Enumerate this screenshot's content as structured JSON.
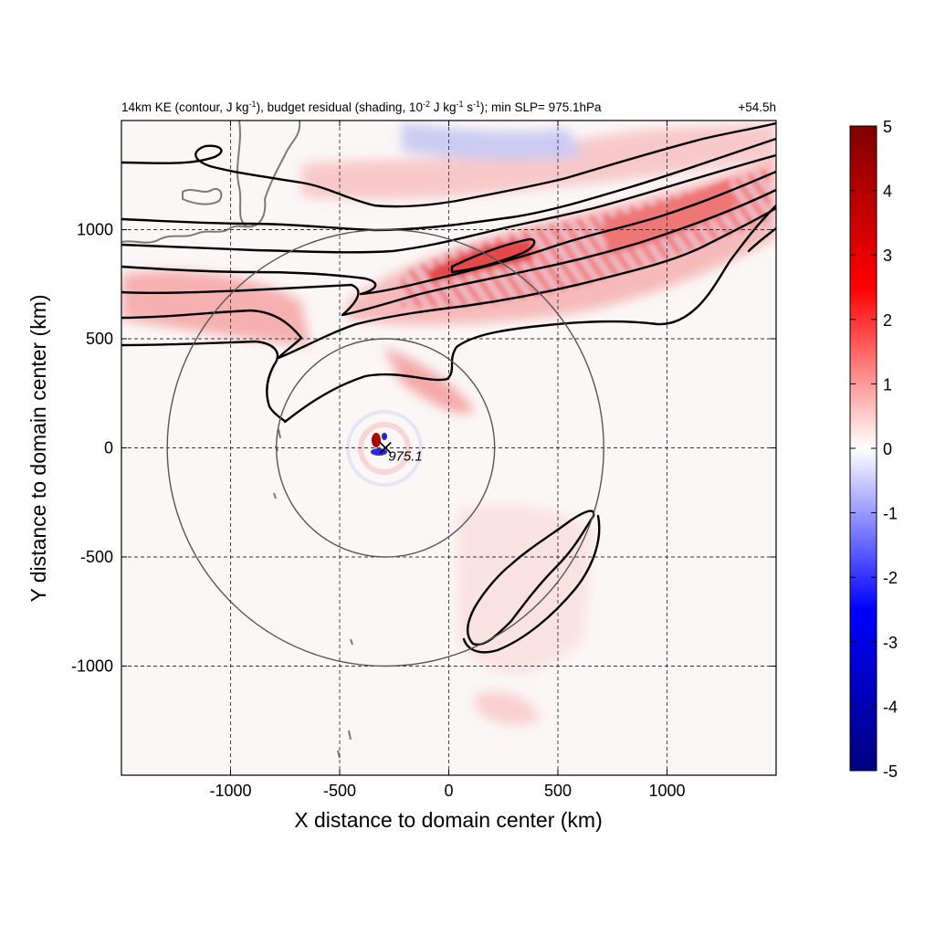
{
  "chart_data": {
    "type": "heatmap",
    "title_left": "14km KE (contour, J kg-1), budget residual (shading, 10-2 J kg-1 s-1); min SLP= 975.1hPa",
    "title_parts": {
      "p1": "14km KE (contour, J kg",
      "p1_sup": "-1",
      "p2": "), budget residual (shading, 10",
      "p2_sup": "-2",
      "p3": " J kg",
      "p3_sup": "-1",
      "p4": " s",
      "p4_sup": "-1",
      "p5": "); min SLP= 975.1hPa"
    },
    "title_right": "+54.5h",
    "xlabel": "X distance to domain center (km)",
    "ylabel": "Y distance to domain center (km)",
    "xlim": [
      -1500,
      1500
    ],
    "ylim": [
      -1500,
      1500
    ],
    "x_ticks": [
      -1000,
      -500,
      0,
      500,
      1000
    ],
    "y_ticks": [
      -1000,
      -500,
      0,
      500,
      1000
    ],
    "x_tick_labels": [
      "-1000",
      "-500",
      "0",
      "500",
      "1000"
    ],
    "y_tick_labels": [
      "-1000",
      "-500",
      "0",
      "500",
      "1000"
    ],
    "grid": true,
    "grid_style": "dashed",
    "colorbar": {
      "min": -5,
      "max": 5,
      "ticks": [
        5,
        4,
        3,
        2,
        1,
        0,
        -1,
        -2,
        -3,
        -4,
        -5
      ],
      "tick_labels": [
        "5",
        "4",
        "3",
        "2",
        "1",
        "0",
        "-1",
        "-2",
        "-3",
        "-4",
        "-5"
      ],
      "colormap": [
        "#00007f",
        "#0000ff",
        "#ffffff",
        "#ff0000",
        "#7f0000"
      ]
    },
    "storm_center": {
      "x": -290,
      "y": 0,
      "min_slp_label": "975.1"
    },
    "range_rings_km": [
      500,
      1000
    ],
    "shading_regions": [
      {
        "name": "jet-red-band",
        "value": 2.5
      },
      {
        "name": "jet-blue-band",
        "value": -1.0
      },
      {
        "name": "core-positive",
        "value": 5.0
      },
      {
        "name": "core-negative",
        "value": -4.0
      },
      {
        "name": "southeast-band",
        "value": 0.8
      }
    ]
  }
}
